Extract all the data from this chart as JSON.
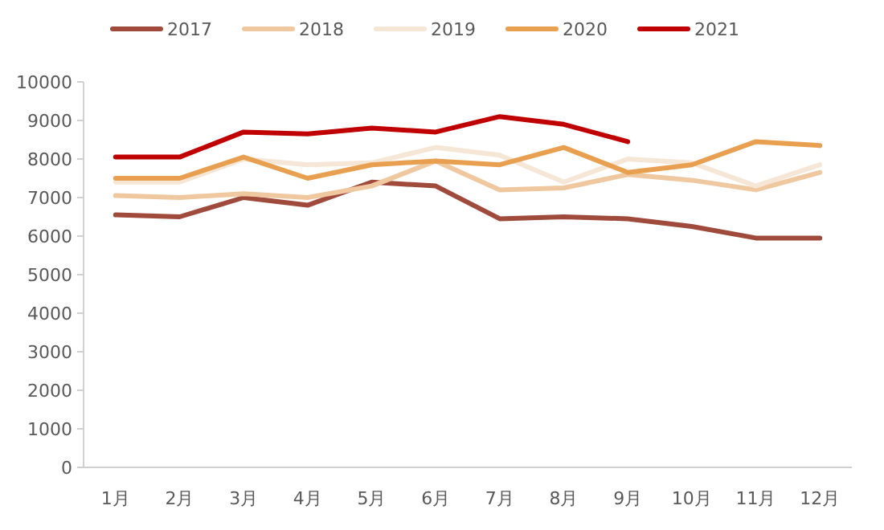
{
  "chart_data": {
    "type": "line",
    "categories": [
      "1月",
      "2月",
      "3月",
      "4月",
      "5月",
      "6月",
      "7月",
      "8月",
      "9月",
      "10月",
      "11月",
      "12月"
    ],
    "series": [
      {
        "name": "2017",
        "color": "#a04a3c",
        "values": [
          6550,
          6500,
          7000,
          6800,
          7400,
          7300,
          6450,
          6500,
          6450,
          6250,
          5950,
          5950
        ]
      },
      {
        "name": "2018",
        "color": "#f0c8a0",
        "values": [
          7050,
          7000,
          7100,
          7000,
          7300,
          7950,
          7200,
          7250,
          7600,
          7450,
          7200,
          7650
        ]
      },
      {
        "name": "2019",
        "color": "#f5e6d6",
        "values": [
          7400,
          7400,
          8000,
          7850,
          7900,
          8300,
          8100,
          7400,
          8000,
          7900,
          7300,
          7850
        ]
      },
      {
        "name": "2020",
        "color": "#e8a050",
        "values": [
          7500,
          7500,
          8050,
          7500,
          7850,
          7950,
          7850,
          8300,
          7650,
          7850,
          8450,
          8350
        ]
      },
      {
        "name": "2021",
        "color": "#c00000",
        "values": [
          8050,
          8050,
          8700,
          8650,
          8800,
          8700,
          9100,
          8900,
          8450,
          null,
          null,
          null
        ]
      }
    ],
    "ylim": [
      0,
      10000
    ],
    "yticks": [
      0,
      1000,
      2000,
      3000,
      4000,
      5000,
      6000,
      7000,
      8000,
      9000,
      10000
    ],
    "legend": "top",
    "grid": false
  }
}
